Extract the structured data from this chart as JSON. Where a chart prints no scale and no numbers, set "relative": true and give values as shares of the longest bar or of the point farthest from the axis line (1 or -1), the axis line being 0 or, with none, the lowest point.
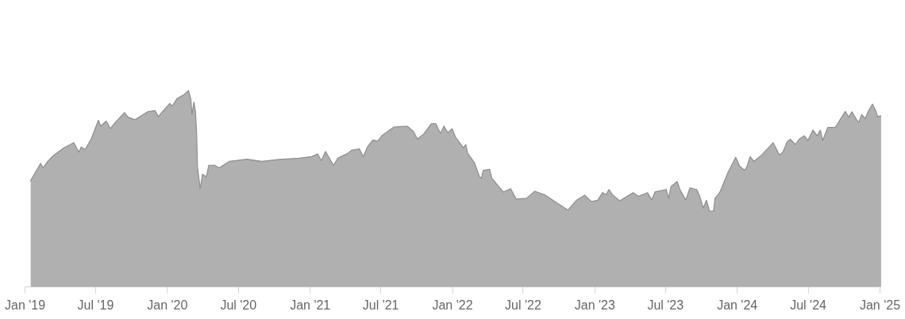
{
  "chart_data": {
    "type": "area",
    "relative": true,
    "color": "#b0b0b0",
    "xlim": [
      "2019-01-01",
      "2025-01-04"
    ],
    "xticks": [
      {
        "value": "2019-01-01",
        "label": "Jan '19"
      },
      {
        "value": "2019-07-01",
        "label": "Jul '19"
      },
      {
        "value": "2020-01-01",
        "label": "Jan '20"
      },
      {
        "value": "2020-07-01",
        "label": "Jul '20"
      },
      {
        "value": "2021-01-01",
        "label": "Jan '21"
      },
      {
        "value": "2021-07-01",
        "label": "Jul '21"
      },
      {
        "value": "2022-01-01",
        "label": "Jan '22"
      },
      {
        "value": "2022-07-01",
        "label": "Jul '22"
      },
      {
        "value": "2023-01-01",
        "label": "Jan '23"
      },
      {
        "value": "2023-07-01",
        "label": "Jul '23"
      },
      {
        "value": "2024-01-01",
        "label": "Jan '24"
      },
      {
        "value": "2024-07-01",
        "label": "Jul '24"
      },
      {
        "value": "2025-01-01",
        "label": "Jan '25"
      }
    ],
    "x": [
      "2019-01-15",
      "2019-02-10",
      "2019-02-16",
      "2019-02-28",
      "2019-03-16",
      "2019-04-11",
      "2019-05-06",
      "2019-05-19",
      "2019-05-25",
      "2019-06-04",
      "2019-06-20",
      "2019-07-08",
      "2019-07-14",
      "2019-07-28",
      "2019-08-08",
      "2019-08-16",
      "2019-09-13",
      "2019-09-22",
      "2019-10-10",
      "2019-11-11",
      "2019-11-30",
      "2019-12-09",
      "2019-12-19",
      "2020-01-07",
      "2020-01-13",
      "2020-01-26",
      "2020-02-11",
      "2020-02-24",
      "2020-03-01",
      "2020-03-04",
      "2020-03-09",
      "2020-03-13",
      "2020-03-16",
      "2020-03-18",
      "2020-03-25",
      "2020-03-31",
      "2020-04-10",
      "2020-04-16",
      "2020-05-01",
      "2020-05-13",
      "2020-06-08",
      "2020-07-23",
      "2020-08-30",
      "2020-10-14",
      "2020-12-04",
      "2021-01-05",
      "2021-01-20",
      "2021-01-30",
      "2021-02-09",
      "2021-03-02",
      "2021-03-13",
      "2021-04-07",
      "2021-04-17",
      "2021-05-07",
      "2021-05-17",
      "2021-05-28",
      "2021-06-11",
      "2021-06-23",
      "2021-07-05",
      "2021-08-04",
      "2021-09-07",
      "2021-09-23",
      "2021-10-03",
      "2021-10-19",
      "2021-11-08",
      "2021-11-19",
      "2021-12-01",
      "2021-12-10",
      "2021-12-20",
      "2021-12-31",
      "2022-01-09",
      "2022-01-29",
      "2022-02-04",
      "2022-02-09",
      "2022-02-26",
      "2022-03-11",
      "2022-03-16",
      "2022-03-21",
      "2022-04-06",
      "2022-04-12",
      "2022-05-11",
      "2022-05-30",
      "2022-06-13",
      "2022-07-10",
      "2022-07-31",
      "2022-08-27",
      "2022-09-25",
      "2022-10-24",
      "2022-11-02",
      "2022-11-15",
      "2022-12-06",
      "2022-12-23",
      "2023-01-08",
      "2023-01-21",
      "2023-01-30",
      "2023-02-06",
      "2023-02-15",
      "2023-03-06",
      "2023-04-09",
      "2023-04-23",
      "2023-05-16",
      "2023-05-27",
      "2023-06-04",
      "2023-07-03",
      "2023-07-09",
      "2023-07-15",
      "2023-07-31",
      "2023-08-07",
      "2023-08-22",
      "2023-09-02",
      "2023-09-19",
      "2023-09-27",
      "2023-10-06",
      "2023-10-14",
      "2023-10-22",
      "2023-11-01",
      "2023-11-05",
      "2023-11-17",
      "2023-12-09",
      "2023-12-28",
      "2024-01-07",
      "2024-01-20",
      "2024-01-26",
      "2024-02-03",
      "2024-02-13",
      "2024-03-04",
      "2024-04-02",
      "2024-04-18",
      "2024-04-27",
      "2024-05-08",
      "2024-05-16",
      "2024-05-29",
      "2024-06-08",
      "2024-06-21",
      "2024-06-30",
      "2024-07-13",
      "2024-07-24",
      "2024-08-01",
      "2024-08-07",
      "2024-08-20",
      "2024-09-08",
      "2024-10-04",
      "2024-10-13",
      "2024-10-21",
      "2024-11-02",
      "2024-11-08",
      "2024-11-15",
      "2024-11-24",
      "2024-12-03",
      "2024-12-13",
      "2024-12-21",
      "2024-12-26",
      "2025-01-04"
    ],
    "values": [
      0.541,
      0.63,
      0.607,
      0.64,
      0.672,
      0.709,
      0.735,
      0.687,
      0.713,
      0.7,
      0.755,
      0.849,
      0.819,
      0.845,
      0.806,
      0.828,
      0.888,
      0.865,
      0.852,
      0.892,
      0.898,
      0.868,
      0.892,
      0.934,
      0.921,
      0.96,
      0.977,
      1,
      0.958,
      0.878,
      0.942,
      0.892,
      0.779,
      0.614,
      0.501,
      0.574,
      0.561,
      0.62,
      0.62,
      0.607,
      0.64,
      0.651,
      0.64,
      0.65,
      0.656,
      0.664,
      0.677,
      0.643,
      0.69,
      0.62,
      0.656,
      0.68,
      0.696,
      0.704,
      0.664,
      0.713,
      0.749,
      0.743,
      0.773,
      0.815,
      0.819,
      0.792,
      0.753,
      0.779,
      0.832,
      0.832,
      0.783,
      0.819,
      0.786,
      0.806,
      0.762,
      0.709,
      0.726,
      0.68,
      0.634,
      0.563,
      0.554,
      0.594,
      0.6,
      0.554,
      0.484,
      0.501,
      0.448,
      0.452,
      0.488,
      0.468,
      0.429,
      0.392,
      0.413,
      0.442,
      0.468,
      0.435,
      0.442,
      0.481,
      0.471,
      0.497,
      0.471,
      0.439,
      0.481,
      0.462,
      0.481,
      0.444,
      0.484,
      0.497,
      0.452,
      0.511,
      0.537,
      0.497,
      0.444,
      0.505,
      0.497,
      0.462,
      0.402,
      0.442,
      0.386,
      0.386,
      0.452,
      0.481,
      0.587,
      0.66,
      0.616,
      0.594,
      0.614,
      0.664,
      0.64,
      0.673,
      0.735,
      0.673,
      0.687,
      0.739,
      0.753,
      0.726,
      0.753,
      0.77,
      0.746,
      0.799,
      0.77,
      0.799,
      0.746,
      0.812,
      0.812,
      0.894,
      0.865,
      0.892,
      0.852,
      0.839,
      0.878,
      0.858,
      0.898,
      0.931,
      0.898,
      0.868,
      0.872
    ]
  }
}
